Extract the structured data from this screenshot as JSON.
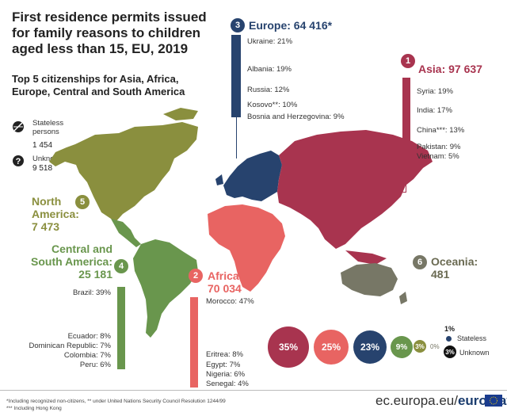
{
  "title": "First residence permits issued for family reasons to children aged less than 15, EU, 2019",
  "subtitle": "Top 5 citizenships for Asia, Africa, Europe, Central and South America",
  "colors": {
    "asia": "#a8344f",
    "europe": "#27436e",
    "africa": "#e86462",
    "north_america": "#8a8f3e",
    "central_south_america": "#69964d",
    "oceania": "#777766"
  },
  "stateless": {
    "label": "Stateless persons",
    "value": "1 454",
    "icon": "stateless-icon"
  },
  "unknown": {
    "label": "Unknown",
    "value": "9 518",
    "icon": "question-icon"
  },
  "regions": {
    "asia": {
      "number": "1",
      "title": "Asia: 97 637",
      "citizenships": [
        "Syria: 19%",
        "India: 17%",
        "China***: 13%",
        "Pakistan: 9%",
        "Vietnam: 5%"
      ]
    },
    "africa": {
      "number": "2",
      "title_line1": "Africa:",
      "title_line2": "70 034",
      "citizenships": [
        "Morocco: 47%",
        "Eritrea: 8%",
        "Egypt: 7%",
        "Nigeria: 6%",
        "Senegal: 4%"
      ]
    },
    "europe": {
      "number": "3",
      "title": "Europe: 64 416*",
      "citizenships": [
        "Ukraine: 21%",
        "Albania: 19%",
        "Russia: 12%",
        "Kosovo**: 10%",
        "Bosnia and Herzegovina: 9%"
      ]
    },
    "central_south_america": {
      "number": "4",
      "title_line1": "Central and",
      "title_line2": "South America:",
      "title_line3": "25 181",
      "citizenships": [
        "Brazil: 39%",
        "Ecuador: 8%",
        "Dominican Republic: 7%",
        "Colombia: 7%",
        "Peru: 6%"
      ]
    },
    "north_america": {
      "number": "5",
      "title_line1": "North",
      "title_line2": "America:",
      "title_line3": "7 473"
    },
    "oceania": {
      "number": "6",
      "title_line1": "Oceania:",
      "title_line2": "481"
    }
  },
  "shares": [
    {
      "label": "35%",
      "region": "asia"
    },
    {
      "label": "25%",
      "region": "africa"
    },
    {
      "label": "23%",
      "region": "europe"
    },
    {
      "label": "9%",
      "region": "central_south_america"
    },
    {
      "label": "3%",
      "region": "north_america"
    },
    {
      "label": "0%",
      "region": "oceania"
    }
  ],
  "shares_legend": {
    "stateless_pct": "1%",
    "stateless_label": "Stateless",
    "unknown_pct": "3%",
    "unknown_label": "Unknown"
  },
  "footnotes": {
    "line1": "*Including recognized non-citizens, ** under United Nations Security Council Resolution 1244/99",
    "line2": "*** Including Hong Kong"
  },
  "source": {
    "prefix": "ec.europa.eu/",
    "brand": "eurostat"
  }
}
